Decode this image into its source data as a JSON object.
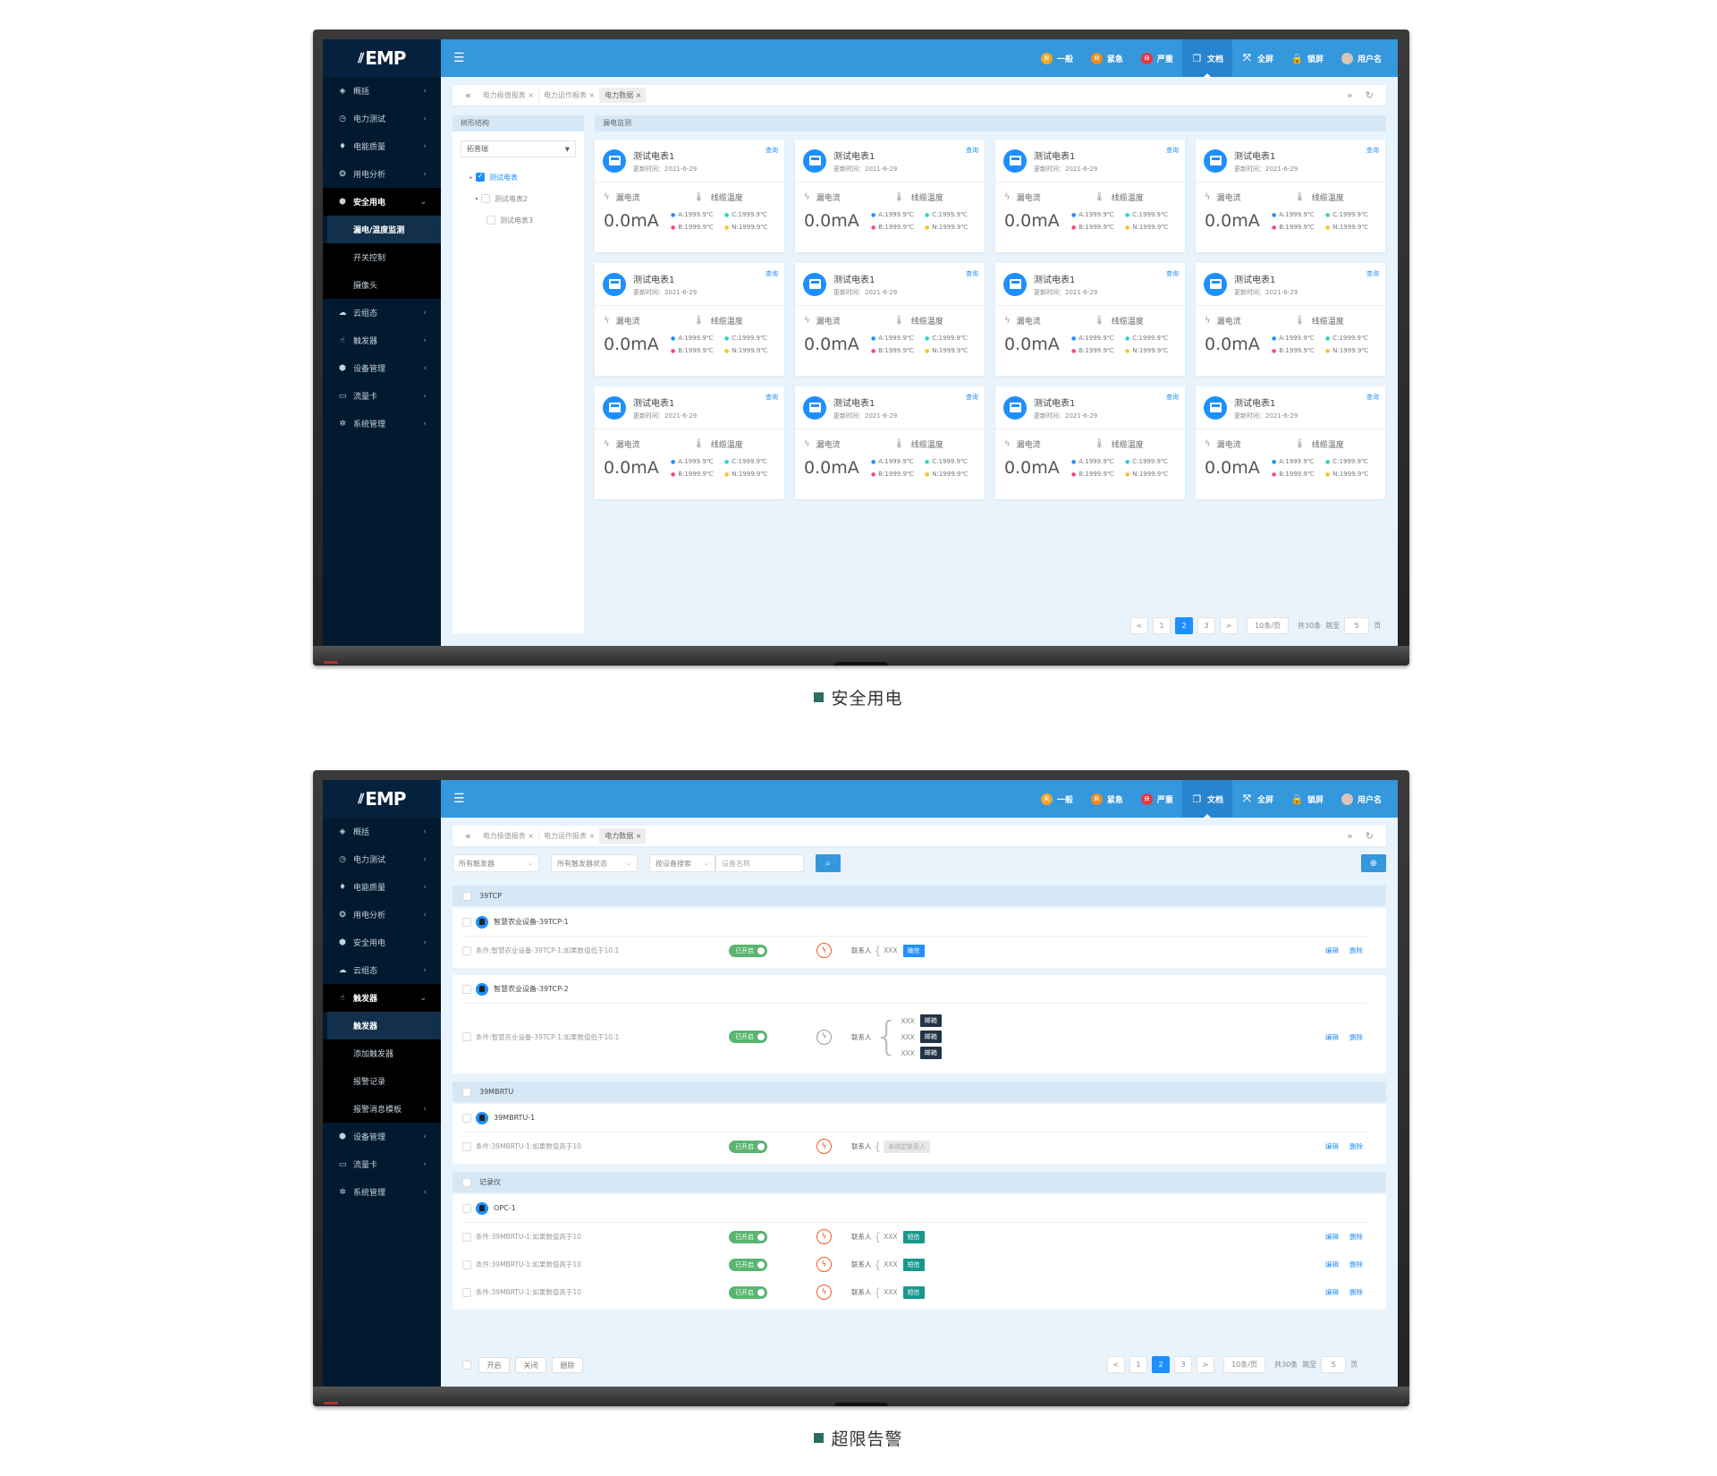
{
  "common": {
    "logo": "EMP",
    "menu_icon": "hamburger-icon",
    "header_items": [
      {
        "label": "一般",
        "icon": "bell-icon",
        "color": "#f5a623",
        "active": false
      },
      {
        "label": "紧急",
        "icon": "bell-icon",
        "color": "#f08c1e",
        "active": false
      },
      {
        "label": "严重",
        "icon": "bell-icon",
        "color": "#e8353f",
        "active": false
      },
      {
        "label": "文档",
        "icon": "document-icon",
        "color": "#ffffff",
        "active": true
      },
      {
        "label": "全屏",
        "icon": "fullscreen-icon",
        "color": "#ffffff",
        "active": false
      },
      {
        "label": "锁屏",
        "icon": "lock-icon",
        "color": "#ffffff",
        "active": false
      },
      {
        "label": "用户名",
        "icon": "avatar",
        "color": "#d8c4b8",
        "active": false
      }
    ],
    "tabs": [
      {
        "label": "电力极值报表 ×",
        "active": false
      },
      {
        "label": "电力运作报表 ×",
        "active": false
      },
      {
        "label": "电力数据 ×",
        "active": true
      }
    ],
    "pagination": {
      "prev": "<",
      "pages": [
        "1",
        "2",
        "3"
      ],
      "current": "2",
      "next": ">",
      "page_size": "10条/页",
      "total": "共30条",
      "goto_label": "跳至",
      "goto_value": "5",
      "page_unit": "页"
    }
  },
  "screen1": {
    "caption": "安全用电",
    "sidebar": [
      {
        "label": "概括",
        "icon": "layers-icon",
        "arrow": "left"
      },
      {
        "label": "电力测试",
        "icon": "gauge-icon",
        "arrow": "left"
      },
      {
        "label": "电能质量",
        "icon": "bulb-icon",
        "arrow": "left"
      },
      {
        "label": "用电分析",
        "icon": "analysis-icon",
        "arrow": "left"
      },
      {
        "label": "安全用电",
        "icon": "shield-icon",
        "arrow": "down",
        "open": true
      },
      {
        "label": "漏电/温度监测",
        "sub": true,
        "active": true
      },
      {
        "label": "开关控制",
        "sub": true
      },
      {
        "label": "摄像头",
        "sub": true
      },
      {
        "label": "云组态",
        "icon": "cloud-icon",
        "arrow": "left"
      },
      {
        "label": "触发器",
        "icon": "trigger-icon",
        "arrow": "left"
      },
      {
        "label": "设备管理",
        "icon": "cube-icon",
        "arrow": "left"
      },
      {
        "label": "流量卡",
        "icon": "card-icon",
        "arrow": "left"
      },
      {
        "label": "系统管理",
        "icon": "gear-icon",
        "arrow": "left"
      }
    ],
    "tree": {
      "title": "树形结构",
      "select": "拓普瑞",
      "nodes": [
        {
          "label": "测试电表",
          "twisty": "▸",
          "checked": true
        },
        {
          "label": "测试电表2",
          "twisty": "▾",
          "checked": false
        },
        {
          "label": "测试电表3",
          "twisty": "",
          "checked": false
        }
      ]
    },
    "section_title": "漏电监测",
    "card_template": {
      "name": "测试电表1",
      "updated": "更新时间：2021-6-29",
      "query": "查询",
      "leak_label": "漏电流",
      "temp_label": "线缆温度",
      "leak_value": "0.0mA",
      "temps": [
        {
          "label": "A:1999.9℃",
          "color": "#1e8fff"
        },
        {
          "label": "C:1999.9℃",
          "color": "#2ed3c3"
        },
        {
          "label": "B:1999.9℃",
          "color": "#f5487f"
        },
        {
          "label": "N:1999.9℃",
          "color": "#fbc02d"
        }
      ]
    },
    "cards": [
      {
        "name": "测试电表1",
        "updated": "更新时间：2021-6-29",
        "leak_value": "0.0mA",
        "temps": [
          "A:1999.9℃",
          "C:1999.9℃",
          "B:1999.9℃",
          "N:1999.9℃"
        ]
      },
      {
        "name": "测试电表1",
        "updated": "更新时间：2021-6-29",
        "leak_value": "0.0mA",
        "temps": [
          "A:1999.9℃",
          "C:1999.9℃",
          "B:1999.9℃",
          "N:1999.9℃"
        ]
      },
      {
        "name": "测试电表1",
        "updated": "更新时间：2021-6-29",
        "leak_value": "0.0mA",
        "temps": [
          "A:1999.9℃",
          "C:1999.9℃",
          "B:1999.9℃",
          "N:1999.9℃"
        ]
      },
      {
        "name": "测试电表1",
        "updated": "更新时间：2021-6-29",
        "leak_value": "0.0mA",
        "temps": [
          "A:1999.9℃",
          "C:1999.9℃",
          "B:1999.9℃",
          "N:1999.9℃"
        ]
      },
      {
        "name": "测试电表1",
        "updated": "更新时间：2021-6-29",
        "leak_value": "0.0mA",
        "temps": [
          "A:1999.9℃",
          "C:1999.9℃",
          "B:1999.9℃",
          "N:1999.9℃"
        ]
      },
      {
        "name": "测试电表1",
        "updated": "更新时间：2021-6-29",
        "leak_value": "0.0mA",
        "temps": [
          "A:1999.9℃",
          "C:1999.9℃",
          "B:1999.9℃",
          "N:1999.9℃"
        ]
      },
      {
        "name": "测试电表1",
        "updated": "更新时间：2021-6-29",
        "leak_value": "0.0mA",
        "temps": [
          "A:1999.9℃",
          "C:1999.9℃",
          "B:1999.9℃",
          "N:1999.9℃"
        ]
      },
      {
        "name": "测试电表1",
        "updated": "更新时间：2021-6-29",
        "leak_value": "0.0mA",
        "temps": [
          "A:1999.9℃",
          "C:1999.9℃",
          "B:1999.9℃",
          "N:1999.9℃"
        ]
      },
      {
        "name": "测试电表1",
        "updated": "更新时间：2021-6-29",
        "leak_value": "0.0mA",
        "temps": [
          "A:1999.9℃",
          "C:1999.9℃",
          "B:1999.9℃",
          "N:1999.9℃"
        ]
      },
      {
        "name": "测试电表1",
        "updated": "更新时间：2021-6-29",
        "leak_value": "0.0mA",
        "temps": [
          "A:1999.9℃",
          "C:1999.9℃",
          "B:1999.9℃",
          "N:1999.9℃"
        ]
      },
      {
        "name": "测试电表1",
        "updated": "更新时间：2021-6-29",
        "leak_value": "0.0mA",
        "temps": [
          "A:1999.9℃",
          "C:1999.9℃",
          "B:1999.9℃",
          "N:1999.9℃"
        ]
      },
      {
        "name": "测试电表1",
        "updated": "更新时间：2021-6-29",
        "leak_value": "0.0mA",
        "temps": [
          "A:1999.9℃",
          "C:1999.9℃",
          "B:1999.9℃",
          "N:1999.9℃"
        ]
      }
    ]
  },
  "screen2": {
    "caption": "超限告警",
    "sidebar": [
      {
        "label": "概括",
        "icon": "layers-icon",
        "arrow": "left"
      },
      {
        "label": "电力测试",
        "icon": "gauge-icon",
        "arrow": "left"
      },
      {
        "label": "电能质量",
        "icon": "bulb-icon",
        "arrow": "left"
      },
      {
        "label": "用电分析",
        "icon": "analysis-icon",
        "arrow": "left"
      },
      {
        "label": "安全用电",
        "icon": "shield-icon",
        "arrow": "left"
      },
      {
        "label": "云组态",
        "icon": "cloud-icon",
        "arrow": "left"
      },
      {
        "label": "触发器",
        "icon": "trigger-icon",
        "arrow": "down",
        "open": true
      },
      {
        "label": "触发器",
        "sub": true,
        "active": true
      },
      {
        "label": "添加触发器",
        "sub": true
      },
      {
        "label": "报警记录",
        "sub": true
      },
      {
        "label": "报警消息模板",
        "sub": true,
        "arrow": "left"
      },
      {
        "label": "设备管理",
        "icon": "cube-icon",
        "arrow": "left"
      },
      {
        "label": "流量卡",
        "icon": "card-icon",
        "arrow": "left"
      },
      {
        "label": "系统管理",
        "icon": "gear-icon",
        "arrow": "left"
      }
    ],
    "filters": {
      "trigger": "所有触发器",
      "status": "所有触发器状态",
      "search_by": "按设备搜索",
      "device_name_placeholder": "设备名称"
    },
    "labels": {
      "contact": "联系人",
      "edit": "编辑",
      "delete": "删除"
    },
    "groups": [
      {
        "name": "39TCP",
        "devices": [
          {
            "name": "智慧农业设备-39TCP-1",
            "rules": [
              {
                "condition": "条件:智慧农业设备-39TCP-1:如果数值低于10.1",
                "status": "已开启",
                "alert_active": true,
                "contacts": [
                  {
                    "name": "XXX",
                    "channel": "微信",
                    "color": "#1e8fff"
                  }
                ]
              }
            ]
          },
          {
            "name": "智慧农业设备-39TCP-2",
            "rules": [
              {
                "condition": "条件:智慧农业设备-39TCP-1:如果数值低于10.1",
                "status": "已开启",
                "alert_active": false,
                "contacts": [
                  {
                    "name": "XXX",
                    "channel": "邮箱",
                    "color": "#233447"
                  },
                  {
                    "name": "XXX",
                    "channel": "邮箱",
                    "color": "#233447"
                  },
                  {
                    "name": "XXX",
                    "channel": "邮箱",
                    "color": "#233447"
                  }
                ]
              }
            ]
          }
        ]
      },
      {
        "name": "39MBRTU",
        "devices": [
          {
            "name": "39MBRTU-1",
            "rules": [
              {
                "condition": "条件:39MBRTU-1:如果数值高于10",
                "status": "已开启",
                "alert_active": true,
                "unbound": "未绑定联系人",
                "contacts": []
              }
            ]
          }
        ]
      },
      {
        "name": "记录仪",
        "devices": [
          {
            "name": "OPC-1",
            "rules": [
              {
                "condition": "条件:39MBRTU-1:如果数值高于10",
                "status": "已开启",
                "alert_active": true,
                "contacts": [
                  {
                    "name": "XXX",
                    "channel": "短信",
                    "color": "#16988a"
                  }
                ]
              },
              {
                "condition": "条件:39MBRTU-1:如果数值高于10",
                "status": "已开启",
                "alert_active": true,
                "contacts": [
                  {
                    "name": "XXX",
                    "channel": "短信",
                    "color": "#16988a"
                  }
                ]
              },
              {
                "condition": "条件:39MBRTU-1:如果数值高于10",
                "status": "已开启",
                "alert_active": true,
                "contacts": [
                  {
                    "name": "XXX",
                    "channel": "短信",
                    "color": "#16988a"
                  }
                ]
              }
            ]
          }
        ]
      }
    ],
    "bulk_actions": [
      "开启",
      "关闭",
      "删除"
    ]
  }
}
